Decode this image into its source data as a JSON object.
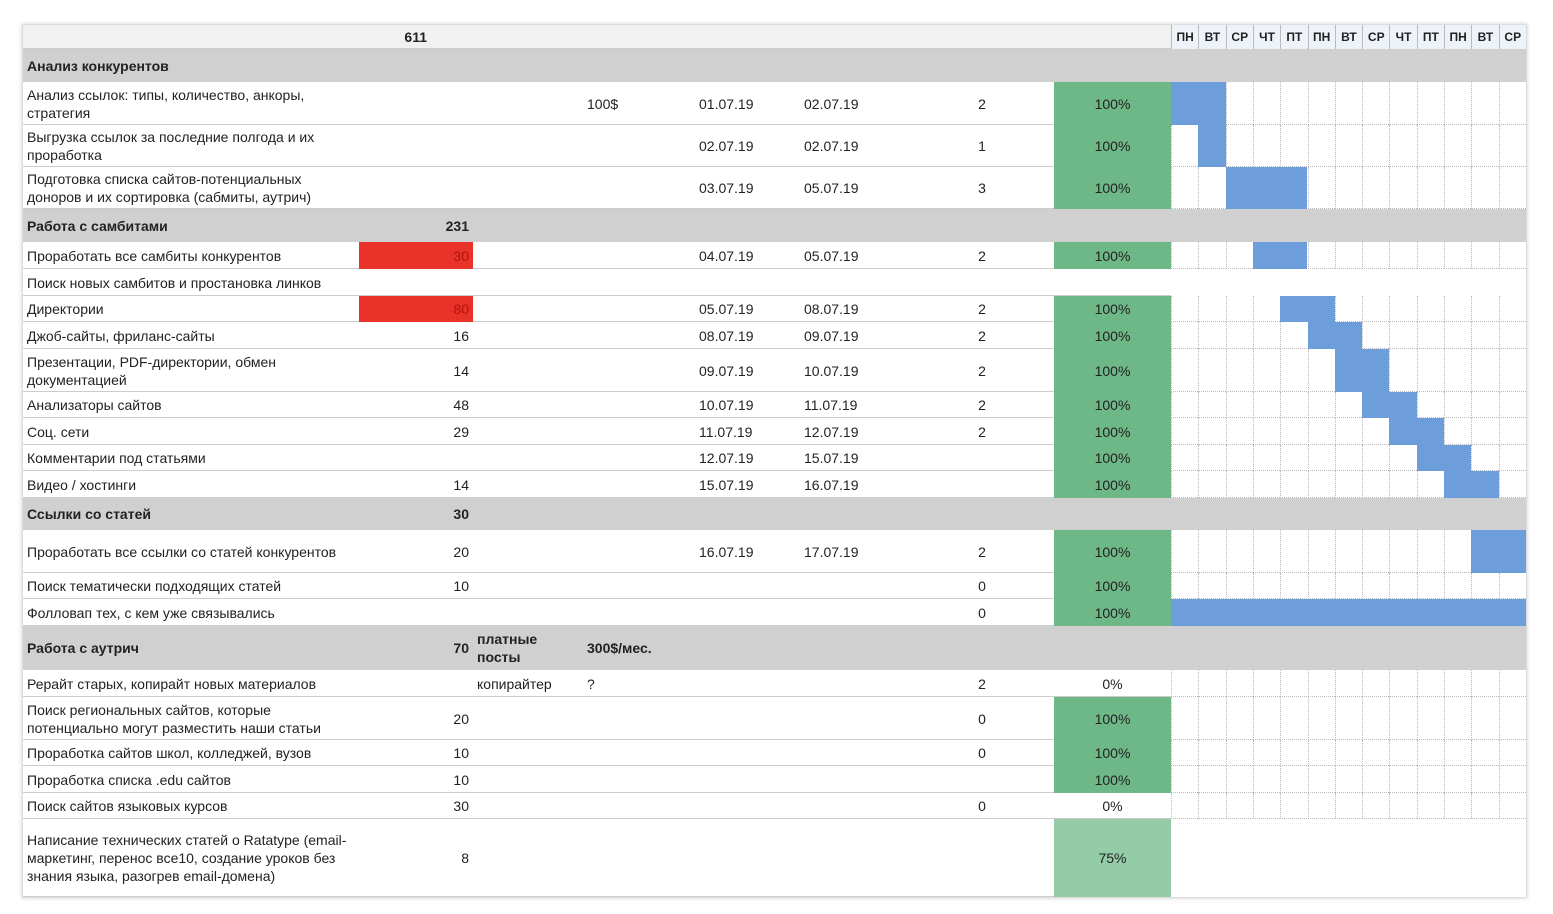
{
  "header": {
    "total": "611",
    "days": [
      "ПН",
      "ВТ",
      "СР",
      "ЧТ",
      "ПТ",
      "ПН",
      "ВТ",
      "СР",
      "ЧТ",
      "ПТ",
      "ПН",
      "ВТ",
      "СР"
    ]
  },
  "rows": [
    {
      "section": true,
      "name": "Анализ конкурентов"
    },
    {
      "name": "Анализ ссылок: типы, количество, анкоры, стратегия",
      "price": "100$",
      "start": "01.07.19",
      "end": "02.07.19",
      "days": 2,
      "done": "100%",
      "gantt": [
        0,
        1
      ]
    },
    {
      "name": "Выгрузка ссылок за последние полгода и их проработка",
      "start": "02.07.19",
      "end": "02.07.19",
      "days": 1,
      "done": "100%",
      "gantt": [
        1,
        1
      ]
    },
    {
      "name": "Подготовка списка сайтов-потенциальных доноров и их сортировка (сабмиты, аутрич)",
      "start": "03.07.19",
      "end": "05.07.19",
      "days": 3,
      "done": "100%",
      "gantt": [
        2,
        4
      ]
    },
    {
      "section": true,
      "name": "Работа с самбитами",
      "count": 231
    },
    {
      "name": "Проработать все самбиты конкурентов",
      "count": 30,
      "highlight": true,
      "start": "04.07.19",
      "end": "05.07.19",
      "days": 2,
      "done": "100%",
      "gantt": [
        3,
        4
      ]
    },
    {
      "name": "Поиск новых самбитов и простановка линков",
      "plain": true
    },
    {
      "name": "Директории",
      "count": 80,
      "highlight": true,
      "start": "05.07.19",
      "end": "08.07.19",
      "days": 2,
      "done": "100%",
      "gantt": [
        4,
        5
      ]
    },
    {
      "name": "Джоб-сайты, фриланс-сайты",
      "count": 16,
      "start": "08.07.19",
      "end": "09.07.19",
      "days": 2,
      "done": "100%",
      "gantt": [
        5,
        6
      ]
    },
    {
      "name": "Презентации, PDF-директории, обмен документацией",
      "count": 14,
      "start": "09.07.19",
      "end": "10.07.19",
      "days": 2,
      "done": "100%",
      "gantt": [
        6,
        7
      ]
    },
    {
      "name": "Анализаторы сайтов",
      "count": 48,
      "start": "10.07.19",
      "end": "11.07.19",
      "days": 2,
      "done": "100%",
      "gantt": [
        7,
        8
      ]
    },
    {
      "name": "Соц. сети",
      "count": 29,
      "start": "11.07.19",
      "end": "12.07.19",
      "days": 2,
      "done": "100%",
      "gantt": [
        8,
        9
      ]
    },
    {
      "name": "Комментарии под статьями",
      "start": "12.07.19",
      "end": "15.07.19",
      "done": "100%",
      "gantt": [
        9,
        10
      ]
    },
    {
      "name": "Видео / хостинги",
      "count": 14,
      "start": "15.07.19",
      "end": "16.07.19",
      "done": "100%",
      "gantt": [
        10,
        11
      ]
    },
    {
      "section": true,
      "name": "Ссылки со статей",
      "count": 30
    },
    {
      "name": "Проработать все ссылки со статей конкурентов",
      "count": 20,
      "start": "16.07.19",
      "end": "17.07.19",
      "days": 2,
      "done": "100%",
      "gantt": [
        11,
        12
      ]
    },
    {
      "name": "Поиск тематически подходящих статей",
      "count": 10,
      "days": 0,
      "done": "100%"
    },
    {
      "name": "Фолловап тех, с кем уже связывались",
      "days": 0,
      "done": "100%",
      "gantt": [
        0,
        12
      ]
    },
    {
      "section": true,
      "name": "Работа с аутрич",
      "count": 70,
      "note": "платные посты",
      "price": "300$/мес."
    },
    {
      "name": "Рерайт старых, копирайт новых материалов",
      "note": "копирайтер",
      "price": "?",
      "days": 2,
      "done": "0%"
    },
    {
      "name": "Поиск региональных сайтов, которые потенциально могут разместить наши статьи",
      "count": 20,
      "days": 0,
      "done": "100%"
    },
    {
      "name": "Проработка сайтов школ, колледжей, вузов",
      "count": 10,
      "days": 0,
      "done": "100%"
    },
    {
      "name": "Проработка списка .edu сайтов",
      "count": 10,
      "done": "100%"
    },
    {
      "name": "Поиск сайтов языковых курсов",
      "count": 30,
      "days": 0,
      "done": "0%"
    },
    {
      "name": "Написание технических статей о Ratatype (email-маркетинг, перенос все10, создание уроков без знания языка, разогрев email-домена)",
      "count": 8,
      "done": "75%",
      "nogrid": true
    }
  ]
}
